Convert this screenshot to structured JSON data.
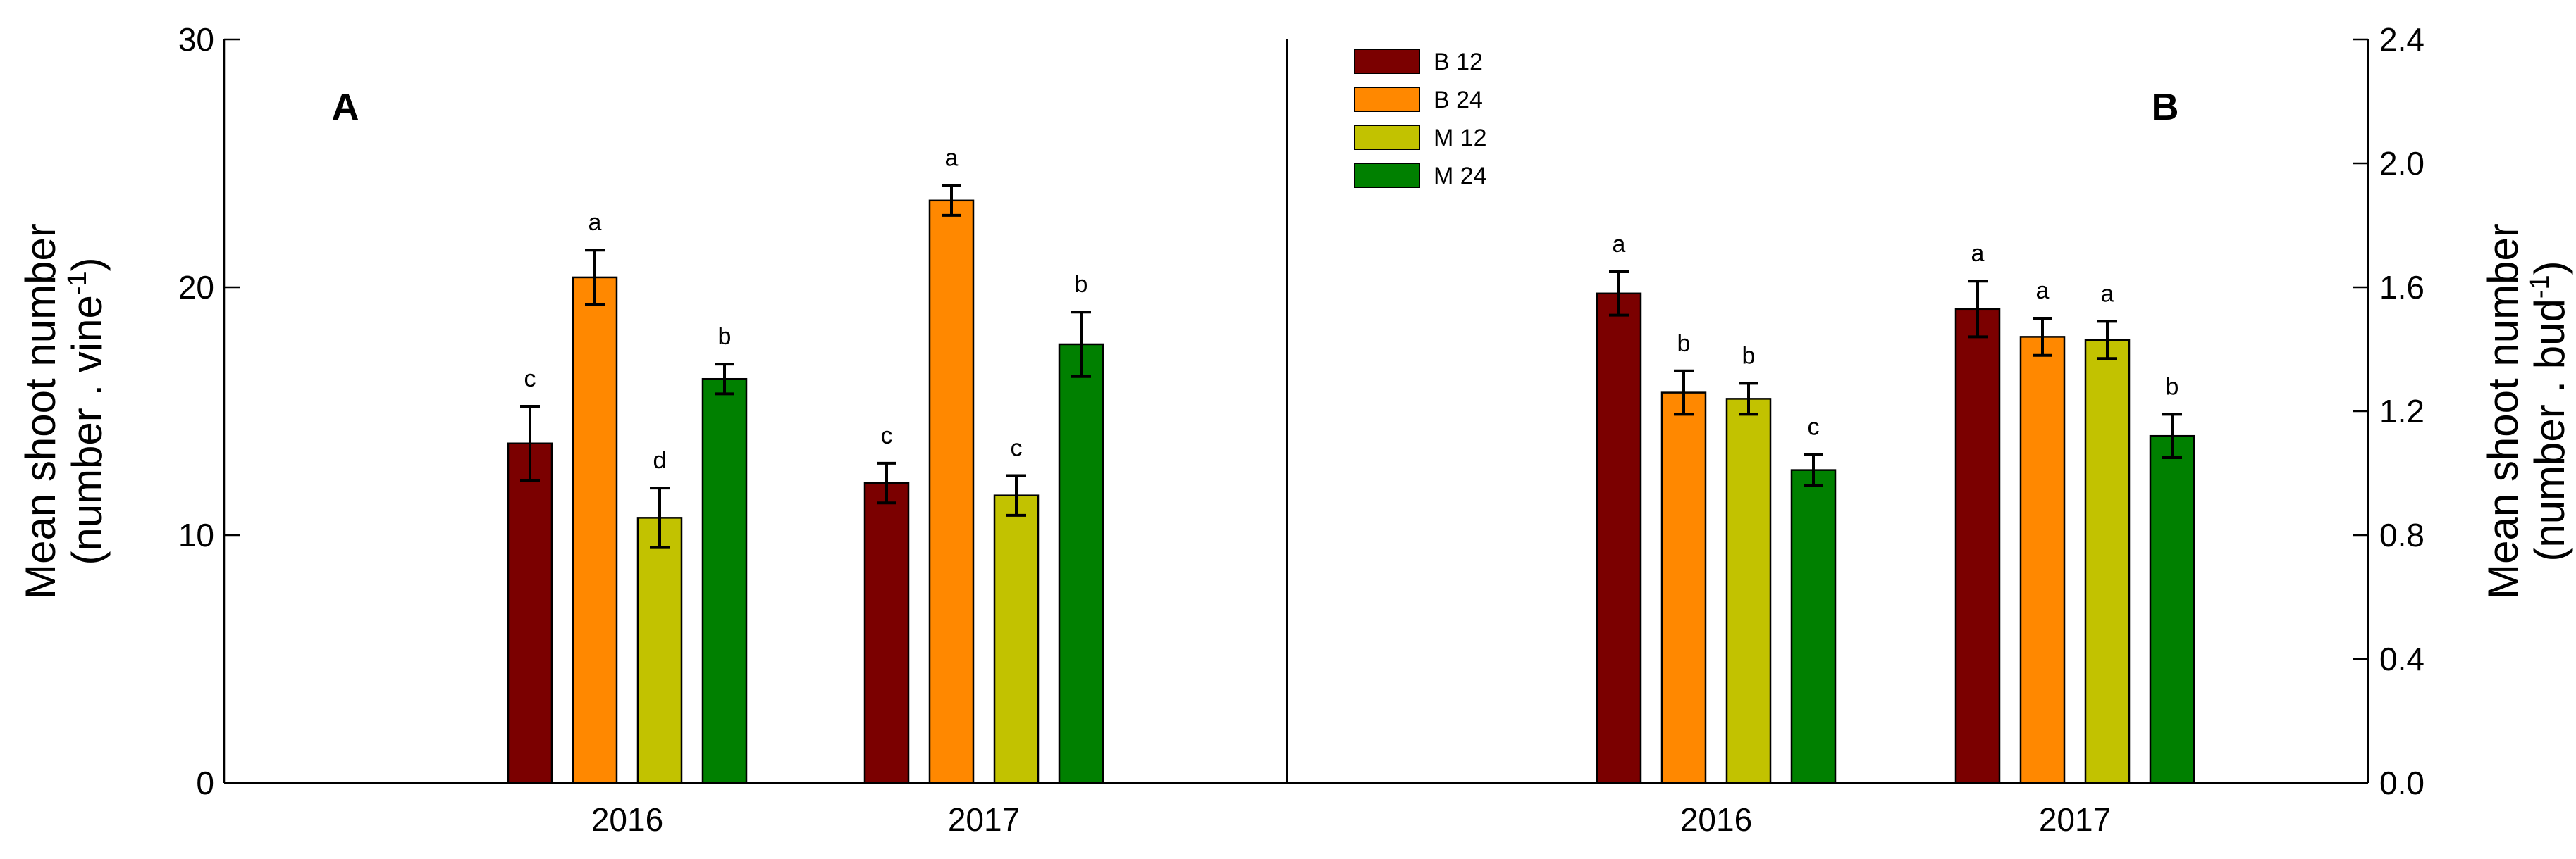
{
  "chart_data": {
    "type": "bar",
    "legend": {
      "placement": "top-center",
      "entries": [
        "B 12",
        "B 24",
        "M 12",
        "M 24"
      ]
    },
    "series_colors": [
      "#7b0000",
      "#ff8800",
      "#c2c200",
      "#008000"
    ],
    "errorbars": true,
    "grid": false,
    "panels": [
      {
        "id": "A",
        "label": "A",
        "categories": [
          "2016",
          "2017"
        ],
        "ylabel": "Mean shoot number",
        "ylabel_unit_pre": "(number . vine",
        "ylabel_unit_sup": "-1",
        "ylabel_unit_post": ")",
        "ylim": [
          0,
          30
        ],
        "yticks": [
          "0",
          "10",
          "20",
          "30"
        ],
        "series": [
          {
            "name": "B 12",
            "values": [
              13.7,
              12.1
            ],
            "errors": [
              1.5,
              0.8
            ],
            "letters": [
              "c",
              "c"
            ]
          },
          {
            "name": "B 24",
            "values": [
              20.4,
              23.5
            ],
            "errors": [
              1.1,
              0.6
            ],
            "letters": [
              "a",
              "a"
            ]
          },
          {
            "name": "M 12",
            "values": [
              10.7,
              11.6
            ],
            "errors": [
              1.2,
              0.8
            ],
            "letters": [
              "d",
              "c"
            ]
          },
          {
            "name": "M 24",
            "values": [
              16.3,
              17.7
            ],
            "errors": [
              0.6,
              1.3
            ],
            "letters": [
              "b",
              "b"
            ]
          }
        ]
      },
      {
        "id": "B",
        "label": "B",
        "categories": [
          "2016",
          "2017"
        ],
        "ylabel": "Mean shoot number",
        "ylabel_unit_pre": "(number . bud",
        "ylabel_unit_sup": "-1",
        "ylabel_unit_post": ")",
        "ylim": [
          0,
          2.4
        ],
        "yticks": [
          "0.0",
          "0.4",
          "0.8",
          "1.2",
          "1.6",
          "2.0",
          "2.4"
        ],
        "series": [
          {
            "name": "B 12",
            "values": [
              1.58,
              1.53
            ],
            "errors": [
              0.07,
              0.09
            ],
            "letters": [
              "a",
              "a"
            ]
          },
          {
            "name": "B 24",
            "values": [
              1.26,
              1.44
            ],
            "errors": [
              0.07,
              0.06
            ],
            "letters": [
              "b",
              "a"
            ]
          },
          {
            "name": "M 12",
            "values": [
              1.24,
              1.43
            ],
            "errors": [
              0.05,
              0.06
            ],
            "letters": [
              "b",
              "a"
            ]
          },
          {
            "name": "M 24",
            "values": [
              1.01,
              1.12
            ],
            "errors": [
              0.05,
              0.07
            ],
            "letters": [
              "c",
              "b"
            ]
          }
        ]
      }
    ]
  }
}
